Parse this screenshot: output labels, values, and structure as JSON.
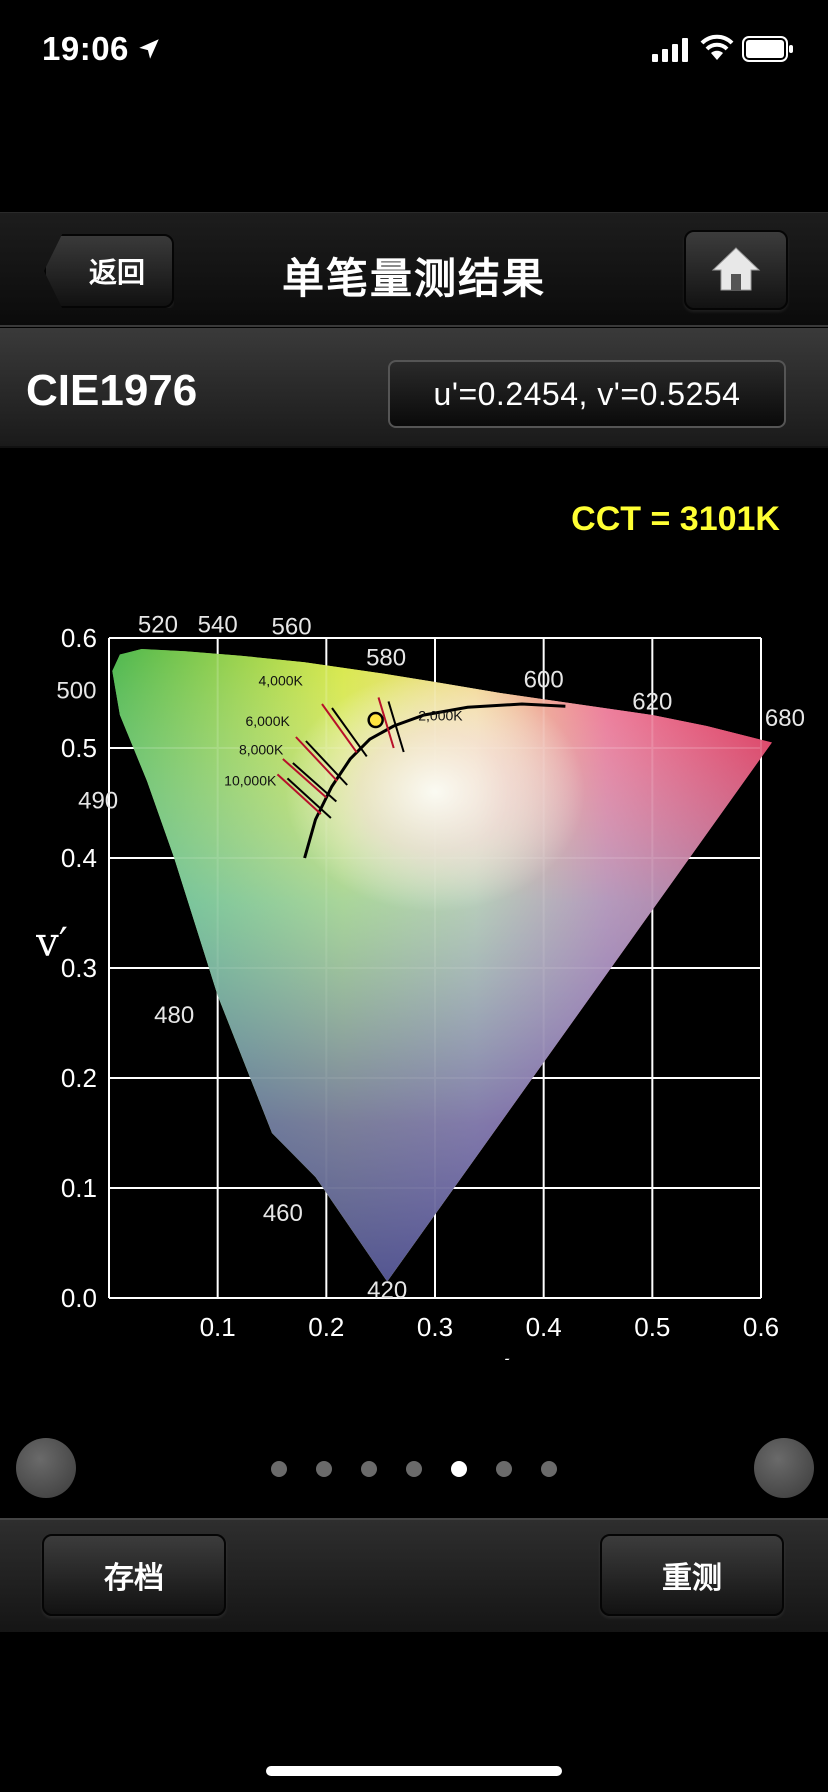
{
  "status_bar": {
    "time": "19:06",
    "icons": [
      "location-arrow-icon",
      "cellular-signal-icon",
      "wifi-icon",
      "battery-icon"
    ]
  },
  "nav": {
    "back_label": "返回",
    "title": "单笔量测结果",
    "home_icon": "home-icon"
  },
  "subheader": {
    "chart_name": "CIE1976",
    "uv_readout": "u'=0.2454, v'=0.5254"
  },
  "cct_text": "CCT = 3101K",
  "chart_data": {
    "type": "scatter",
    "title": "",
    "xlabel": "u′",
    "ylabel": "v′",
    "xlim": [
      0,
      0.6
    ],
    "ylim": [
      0,
      0.6
    ],
    "grid": true,
    "x_ticks": [
      "0.1",
      "0.2",
      "0.3",
      "0.4",
      "0.5",
      "0.6"
    ],
    "y_ticks": [
      "0.0",
      "0.1",
      "0.2",
      "0.3",
      "0.4",
      "0.5",
      "0.6"
    ],
    "wavelength_labels": [
      {
        "text": "420",
        "u": 0.256,
        "v": 0.0
      },
      {
        "text": "460",
        "u": 0.16,
        "v": 0.07
      },
      {
        "text": "480",
        "u": 0.06,
        "v": 0.25
      },
      {
        "text": "490",
        "u": -0.01,
        "v": 0.445
      },
      {
        "text": "500",
        "u": -0.03,
        "v": 0.545
      },
      {
        "text": "520",
        "u": 0.045,
        "v": 0.605
      },
      {
        "text": "540",
        "u": 0.1,
        "v": 0.605
      },
      {
        "text": "560",
        "u": 0.168,
        "v": 0.603
      },
      {
        "text": "580",
        "u": 0.255,
        "v": 0.575
      },
      {
        "text": "600",
        "u": 0.4,
        "v": 0.555
      },
      {
        "text": "620",
        "u": 0.5,
        "v": 0.535
      },
      {
        "text": "680",
        "u": 0.622,
        "v": 0.52
      }
    ],
    "spectral_locus": [
      [
        0.256,
        0.015
      ],
      [
        0.19,
        0.11
      ],
      [
        0.15,
        0.15
      ],
      [
        0.1,
        0.275
      ],
      [
        0.06,
        0.4
      ],
      [
        0.035,
        0.47
      ],
      [
        0.01,
        0.53
      ],
      [
        0.003,
        0.57
      ],
      [
        0.01,
        0.585
      ],
      [
        0.03,
        0.59
      ],
      [
        0.07,
        0.588
      ],
      [
        0.12,
        0.584
      ],
      [
        0.18,
        0.578
      ],
      [
        0.25,
        0.568
      ],
      [
        0.3,
        0.56
      ],
      [
        0.36,
        0.55
      ],
      [
        0.43,
        0.54
      ],
      [
        0.5,
        0.53
      ],
      [
        0.55,
        0.52
      ],
      [
        0.61,
        0.505
      ]
    ],
    "planckian_locus": [
      [
        0.18,
        0.4
      ],
      [
        0.19,
        0.435
      ],
      [
        0.205,
        0.465
      ],
      [
        0.222,
        0.49
      ],
      [
        0.24,
        0.508
      ],
      [
        0.262,
        0.52
      ],
      [
        0.29,
        0.53
      ],
      [
        0.33,
        0.537
      ],
      [
        0.38,
        0.54
      ],
      [
        0.42,
        0.538
      ]
    ],
    "isotherms": [
      {
        "label": "2,000K",
        "u": 0.305,
        "v": 0.528
      },
      {
        "label": "4,000K",
        "u": 0.225,
        "v": 0.51
      },
      {
        "label": "6,000K",
        "u": 0.207,
        "v": 0.478
      },
      {
        "label": "8,000K",
        "u": 0.198,
        "v": 0.458
      },
      {
        "label": "10,000K",
        "u": 0.19,
        "v": 0.44
      }
    ],
    "measured_point": {
      "u": 0.2454,
      "v": 0.5254
    }
  },
  "pager": {
    "count": 7,
    "active_index": 4,
    "left_button": "page-left-button",
    "right_button": "page-right-button"
  },
  "toolbar": {
    "save_label": "存档",
    "remeasure_label": "重测"
  }
}
